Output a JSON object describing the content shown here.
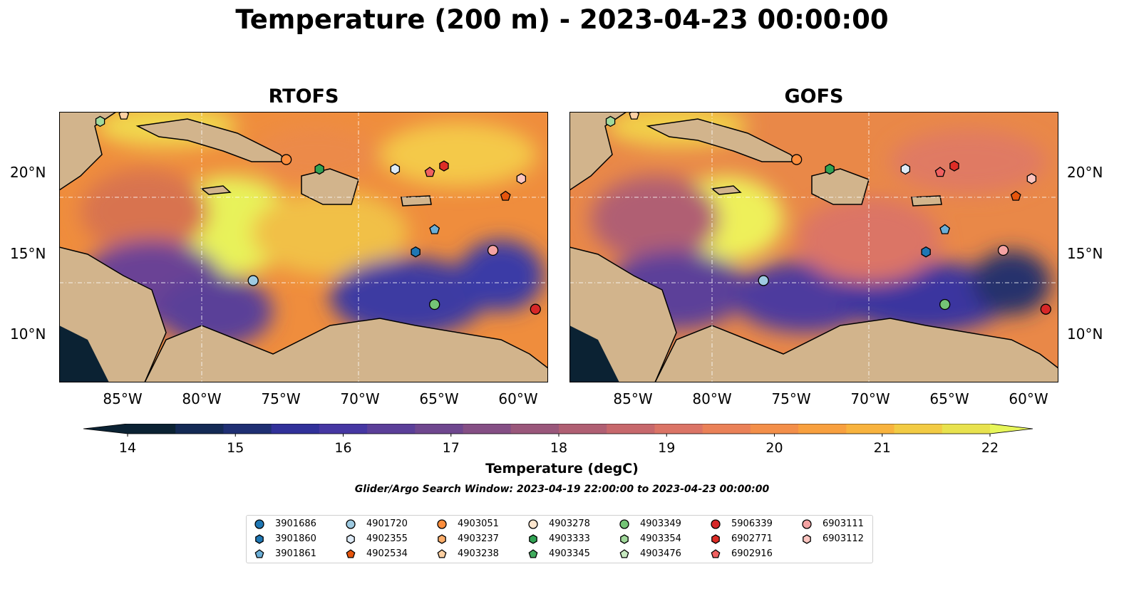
{
  "title": "Temperature (200 m) - 2023-04-23 00:00:00",
  "panels": [
    {
      "name": "RTOFS"
    },
    {
      "name": "GOFS"
    }
  ],
  "map_extent": {
    "lon": [
      -89,
      -58
    ],
    "lat": [
      7,
      24
    ]
  },
  "lat_ticks": [
    "20°N",
    "15°N",
    "10°N"
  ],
  "lon_ticks": [
    "85°W",
    "80°W",
    "75°W",
    "70°W",
    "65°W",
    "60°W"
  ],
  "colorbar": {
    "label": "Temperature (degC)",
    "ticks": [
      "14",
      "15",
      "16",
      "17",
      "18",
      "19",
      "20",
      "21",
      "22"
    ],
    "colors": [
      "#0b2233",
      "#142a55",
      "#1f2f73",
      "#31319a",
      "#4637a3",
      "#5b3f99",
      "#6f478f",
      "#854f85",
      "#9a577b",
      "#b05f73",
      "#c7686c",
      "#db7466",
      "#ea8158",
      "#f38f4a",
      "#f8a03f",
      "#f8b33e",
      "#f2cb44",
      "#e8e24e"
    ],
    "under_color": "#0b2233",
    "over_color": "#e7f65a"
  },
  "search_window": "Glider/Argo Search Window: 2023-04-19 22:00:00 to 2023-04-23 00:00:00",
  "floats": [
    {
      "id": "3901686",
      "marker": "circle",
      "color": "#1f77b4"
    },
    {
      "id": "3901860",
      "marker": "hexagon",
      "color": "#1f77b4"
    },
    {
      "id": "3901861",
      "marker": "pentagon",
      "color": "#6baed6"
    },
    {
      "id": "4901720",
      "marker": "circle",
      "color": "#9ecae1"
    },
    {
      "id": "4902355",
      "marker": "hexagon",
      "color": "#deebf7"
    },
    {
      "id": "4902534",
      "marker": "pentagon",
      "color": "#e6550d"
    },
    {
      "id": "4903051",
      "marker": "circle",
      "color": "#fd8d3c"
    },
    {
      "id": "4903237",
      "marker": "hexagon",
      "color": "#fdae6b"
    },
    {
      "id": "4903238",
      "marker": "pentagon",
      "color": "#fdd0a2"
    },
    {
      "id": "4903278",
      "marker": "circle",
      "color": "#fee6ce"
    },
    {
      "id": "4903333",
      "marker": "hexagon",
      "color": "#31a354"
    },
    {
      "id": "4903345",
      "marker": "pentagon",
      "color": "#41ab5d"
    },
    {
      "id": "4903349",
      "marker": "circle",
      "color": "#74c476"
    },
    {
      "id": "4903354",
      "marker": "hexagon",
      "color": "#a1d99b"
    },
    {
      "id": "4903476",
      "marker": "pentagon",
      "color": "#c7e9c0"
    },
    {
      "id": "5906339",
      "marker": "circle",
      "color": "#d62728"
    },
    {
      "id": "6902771",
      "marker": "hexagon",
      "color": "#de2d26"
    },
    {
      "id": "6902916",
      "marker": "pentagon",
      "color": "#f06060"
    },
    {
      "id": "6903111",
      "marker": "circle",
      "color": "#f4a3a3"
    },
    {
      "id": "6903112",
      "marker": "hexagon",
      "color": "#fcc5c0"
    }
  ],
  "float_positions": [
    {
      "lon": -76.7,
      "lat": 13.4,
      "marker": "circle",
      "color": "#9ecae1"
    },
    {
      "lon": -74.6,
      "lat": 21.0,
      "marker": "circle",
      "color": "#fd8d3c"
    },
    {
      "lon": -72.5,
      "lat": 20.4,
      "marker": "hexagon",
      "color": "#31a354"
    },
    {
      "lon": -67.7,
      "lat": 20.4,
      "marker": "hexagon",
      "color": "#deebf7"
    },
    {
      "lon": -65.5,
      "lat": 20.2,
      "marker": "pentagon",
      "color": "#f06060"
    },
    {
      "lon": -64.6,
      "lat": 20.6,
      "marker": "hexagon",
      "color": "#de2d26"
    },
    {
      "lon": -59.7,
      "lat": 19.8,
      "marker": "hexagon",
      "color": "#fcc5c0"
    },
    {
      "lon": -60.7,
      "lat": 18.7,
      "marker": "pentagon",
      "color": "#e6550d"
    },
    {
      "lon": -65.2,
      "lat": 16.6,
      "marker": "pentagon",
      "color": "#6baed6"
    },
    {
      "lon": -66.4,
      "lat": 15.2,
      "marker": "hexagon",
      "color": "#1f77b4"
    },
    {
      "lon": -61.5,
      "lat": 15.3,
      "marker": "circle",
      "color": "#f4a3a3"
    },
    {
      "lon": -65.2,
      "lat": 11.9,
      "marker": "circle",
      "color": "#74c476"
    },
    {
      "lon": -58.8,
      "lat": 11.6,
      "marker": "circle",
      "color": "#d62728"
    },
    {
      "lon": -86.4,
      "lat": 23.4,
      "marker": "hexagon",
      "color": "#a1d99b"
    },
    {
      "lon": -84.9,
      "lat": 23.8,
      "marker": "pentagon",
      "color": "#fdd0a2"
    }
  ]
}
